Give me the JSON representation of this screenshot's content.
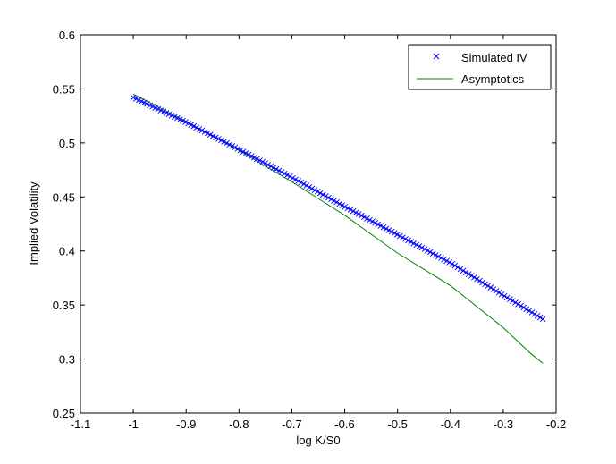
{
  "chart_data": {
    "type": "scatter",
    "xlabel": "log K/S0",
    "ylabel": "Implied Volatility",
    "xlim": [
      -1.1,
      -0.2
    ],
    "ylim": [
      0.25,
      0.6
    ],
    "xticks": [
      -1.1,
      -1,
      -0.9,
      -0.8,
      -0.7,
      -0.6,
      -0.5,
      -0.4,
      -0.3,
      -0.2
    ],
    "yticks": [
      0.25,
      0.3,
      0.35,
      0.4,
      0.45,
      0.5,
      0.55,
      0.6
    ],
    "xtick_labels": [
      "-1.1",
      "-1",
      "-0.9",
      "-0.8",
      "-0.7",
      "-0.6",
      "-0.5",
      "-0.4",
      "-0.3",
      "-0.2"
    ],
    "ytick_labels": [
      "0.25",
      "0.3",
      "0.35",
      "0.4",
      "0.45",
      "0.5",
      "0.55",
      "0.6"
    ],
    "grid": false,
    "legend_position": "top-right",
    "series": [
      {
        "name": "Simulated IV",
        "style": "marker-x",
        "color": "#0000ff",
        "x_range": [
          -1.0,
          -0.225
        ],
        "point_count": 150,
        "anchor_x": [
          -1.0,
          -0.9,
          -0.8,
          -0.7,
          -0.6,
          -0.5,
          -0.4,
          -0.3,
          -0.225
        ],
        "anchor_y": [
          0.542,
          0.519,
          0.494,
          0.468,
          0.441,
          0.415,
          0.389,
          0.359,
          0.337
        ]
      },
      {
        "name": "Asymptotics",
        "style": "line",
        "color": "#008000",
        "x": [
          -1.0,
          -0.9,
          -0.8,
          -0.7,
          -0.6,
          -0.5,
          -0.4,
          -0.3,
          -0.25,
          -0.225
        ],
        "y": [
          0.545,
          0.52,
          0.493,
          0.464,
          0.433,
          0.398,
          0.368,
          0.329,
          0.306,
          0.296
        ]
      }
    ]
  }
}
